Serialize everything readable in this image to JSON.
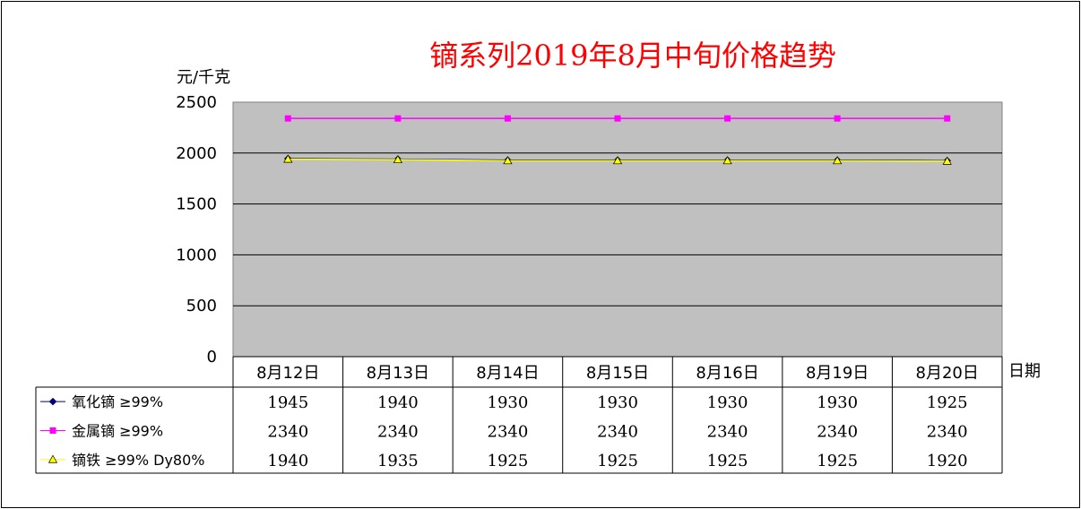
{
  "chart_data": {
    "type": "line",
    "title": "镝系列2019年8月中旬价格趋势",
    "ylabel": "元/千克",
    "xlabel": "日期",
    "ylim": [
      0,
      2500
    ],
    "yticks": [
      0,
      500,
      1000,
      1500,
      2000,
      2500
    ],
    "grid": true,
    "legend": "data-table-left",
    "categories": [
      "8月12日",
      "8月13日",
      "8月14日",
      "8月15日",
      "8月16日",
      "8月19日",
      "8月20日"
    ],
    "series": [
      {
        "name": "氧化镝 ≥99%",
        "values": [
          1945,
          1940,
          1930,
          1930,
          1930,
          1930,
          1925
        ],
        "color": "#000080",
        "marker": "diamond"
      },
      {
        "name": "金属镝 ≥99%",
        "values": [
          2340,
          2340,
          2340,
          2340,
          2340,
          2340,
          2340
        ],
        "color": "#ff00ff",
        "marker": "square"
      },
      {
        "name": "镝铁 ≥99% Dy80%",
        "values": [
          1940,
          1935,
          1925,
          1925,
          1925,
          1925,
          1920
        ],
        "color": "#ffff00",
        "marker": "triangle"
      }
    ],
    "plot_background": "#c0c0c0"
  }
}
